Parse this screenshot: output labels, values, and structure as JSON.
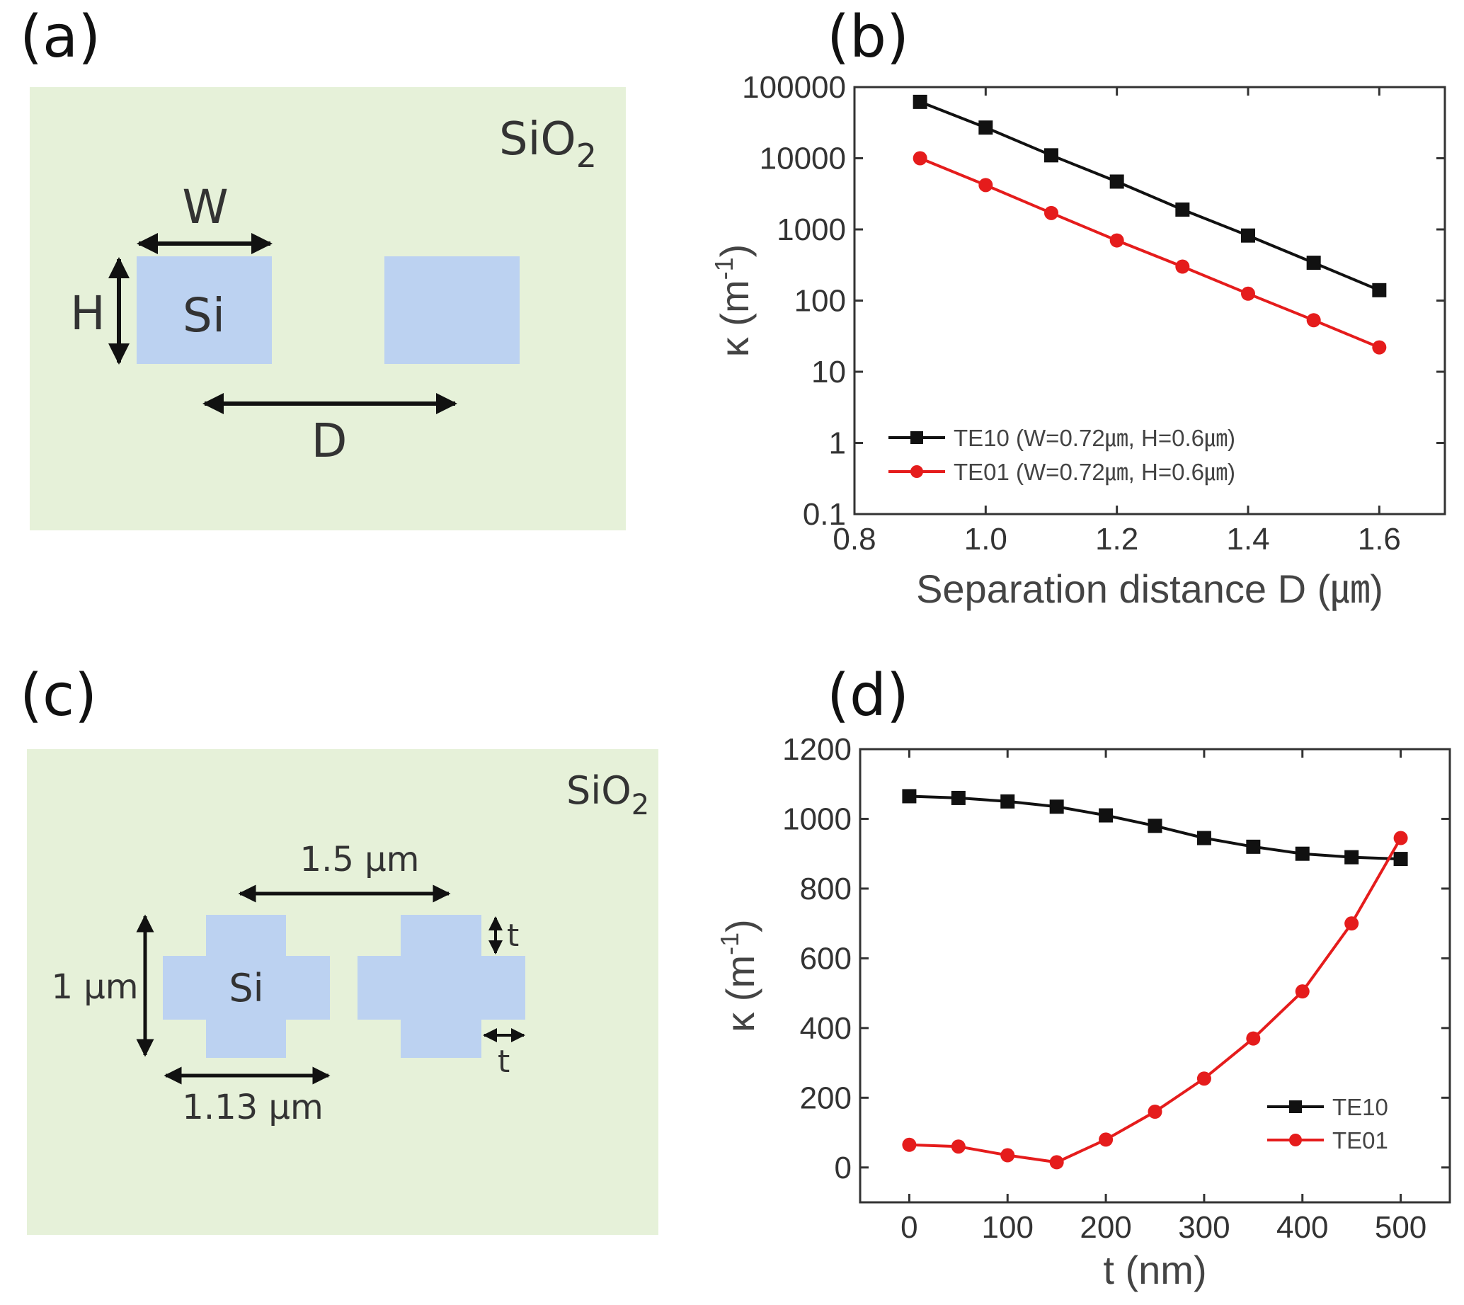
{
  "panels": {
    "a": {
      "label": "(a)",
      "medium": "SiO",
      "medium_sub": "2",
      "core": "Si",
      "width": "W",
      "height": "H",
      "distance": "D",
      "colors": {
        "background": "#e6f1d9",
        "core": "#bcd2f1",
        "arrow": "#111111"
      }
    },
    "b": {
      "label": "(b)"
    },
    "c": {
      "label": "(c)",
      "medium": "SiO",
      "medium_sub": "2",
      "core": "Si",
      "separation": "1.5 μm",
      "height": "1 μm",
      "width": "1.13 μm",
      "t_top": "t",
      "t_side": "t",
      "colors": {
        "background": "#e6f1d9",
        "core": "#bcd2f1",
        "t_label": "#4a6fb8"
      }
    },
    "d": {
      "label": "(d)"
    }
  },
  "chart_data": [
    {
      "id": "b",
      "type": "line",
      "yscale": "log",
      "xlabel": "Separation distance D (㎛)",
      "ylabel": "κ (m⁻¹)",
      "ylabel_base": "κ (m",
      "ylabel_exp": "-1",
      "ylabel_end": ")",
      "xlim": [
        0.8,
        1.7
      ],
      "ylim": [
        0.1,
        100000
      ],
      "xticks": [
        0.8,
        1.0,
        1.2,
        1.4,
        1.6
      ],
      "xtick_labels": [
        "0.8",
        "1.0",
        "1.2",
        "1.4",
        "1.6"
      ],
      "yticks": [
        0.1,
        1,
        10,
        100,
        1000,
        10000,
        100000
      ],
      "ytick_labels": [
        "0.1",
        "1",
        "10",
        "100",
        "1000",
        "10000",
        "100000"
      ],
      "legend_position": "bottom-left",
      "series": [
        {
          "name": "TE10 (W=0.72㎛, H=0.6㎛)",
          "color": "#111111",
          "marker": "square",
          "x": [
            0.9,
            1.0,
            1.1,
            1.2,
            1.3,
            1.4,
            1.5,
            1.6
          ],
          "y": [
            62000,
            27000,
            11000,
            4700,
            1900,
            820,
            340,
            140
          ]
        },
        {
          "name": "TE01 (W=0.72㎛, H=0.6㎛)",
          "color": "#e51c1c",
          "marker": "circle",
          "x": [
            0.9,
            1.0,
            1.1,
            1.2,
            1.3,
            1.4,
            1.5,
            1.6
          ],
          "y": [
            10000,
            4200,
            1700,
            700,
            300,
            125,
            53,
            22
          ]
        }
      ]
    },
    {
      "id": "d",
      "type": "line",
      "yscale": "linear",
      "xlabel": "t (nm)",
      "ylabel": "κ (m⁻¹)",
      "ylabel_base": "κ (m",
      "ylabel_exp": "-1",
      "ylabel_end": ")",
      "xlim": [
        -50,
        550
      ],
      "ylim": [
        -100,
        1200
      ],
      "xticks": [
        0,
        100,
        200,
        300,
        400,
        500
      ],
      "xtick_labels": [
        "0",
        "100",
        "200",
        "300",
        "400",
        "500"
      ],
      "yticks": [
        0,
        200,
        400,
        600,
        800,
        1000,
        1200
      ],
      "ytick_labels": [
        "0",
        "200",
        "400",
        "600",
        "800",
        "1000",
        "1200"
      ],
      "legend_position": "bottom-right",
      "series": [
        {
          "name": "TE10",
          "color": "#111111",
          "marker": "square",
          "x": [
            0,
            50,
            100,
            150,
            200,
            250,
            300,
            350,
            400,
            450,
            500
          ],
          "y": [
            1065,
            1060,
            1050,
            1035,
            1010,
            980,
            945,
            920,
            900,
            890,
            885
          ]
        },
        {
          "name": "TE01",
          "color": "#e51c1c",
          "marker": "circle",
          "x": [
            0,
            50,
            100,
            150,
            200,
            250,
            300,
            350,
            400,
            450,
            500
          ],
          "y": [
            65,
            60,
            35,
            15,
            80,
            160,
            255,
            370,
            505,
            700,
            945
          ]
        }
      ]
    }
  ]
}
